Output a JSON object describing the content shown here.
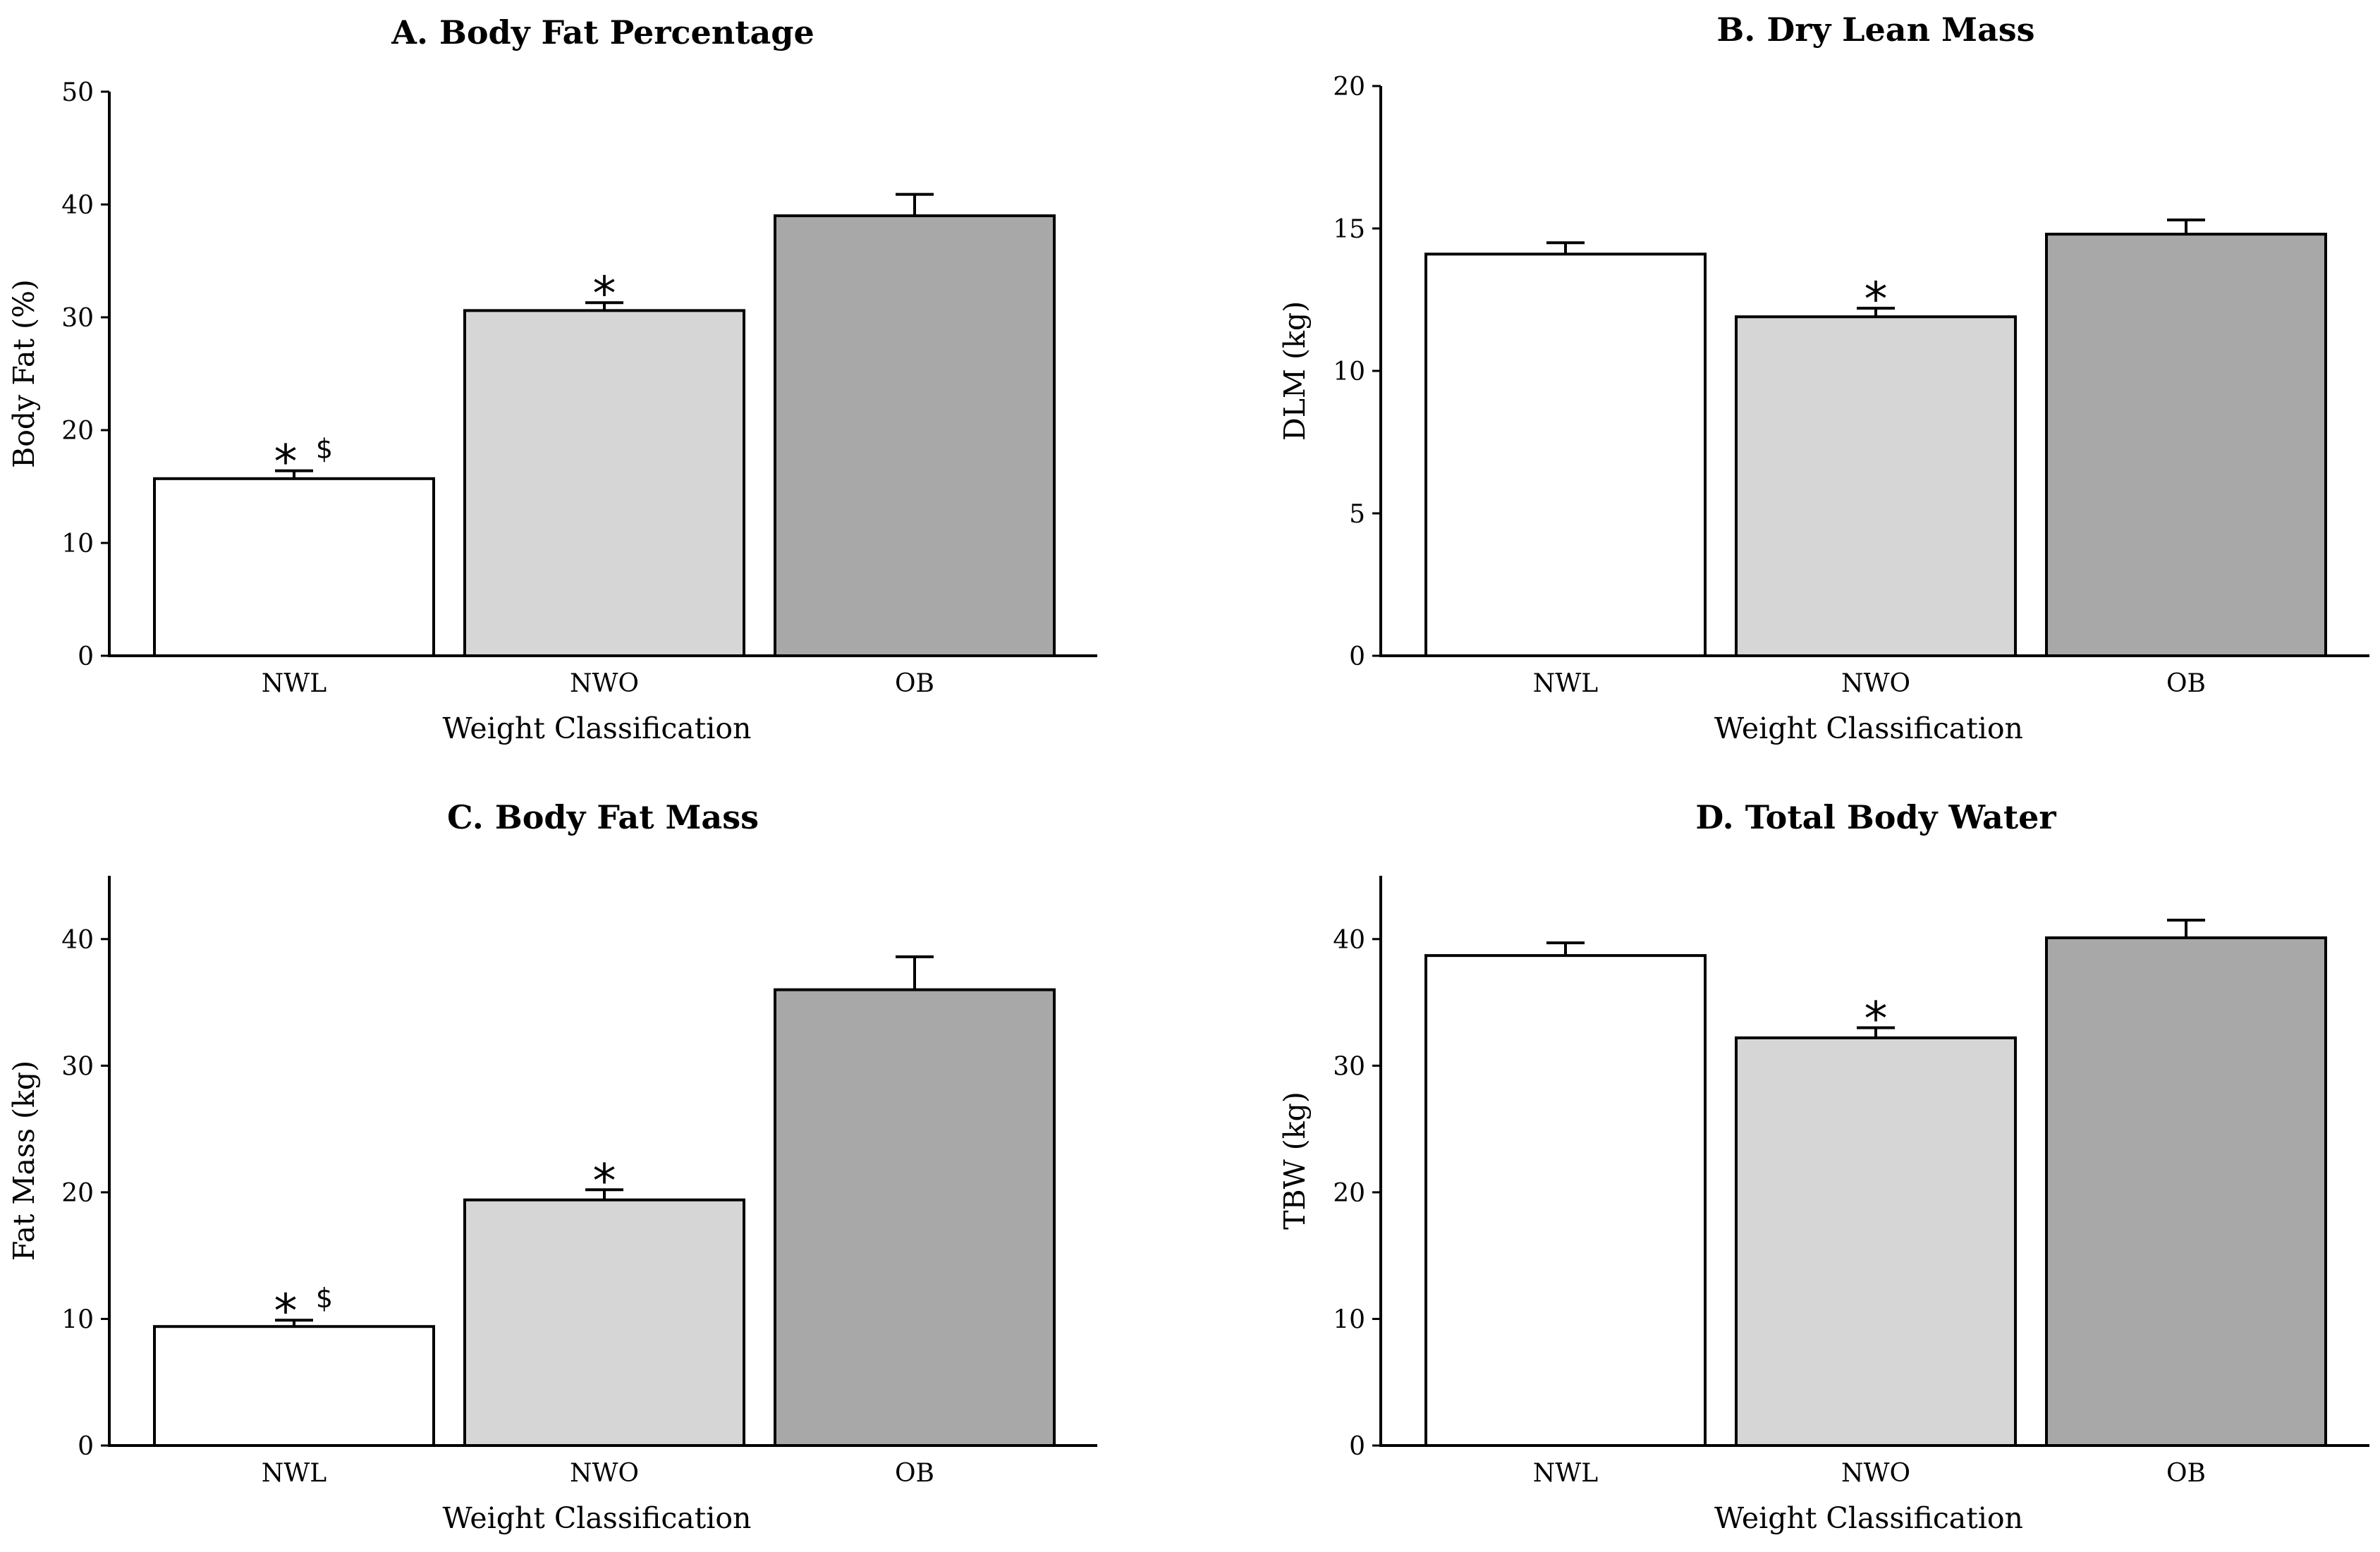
{
  "figure": {
    "colors": {
      "NWL": "#ffffff",
      "NWO": "#d6d6d6",
      "OB": "#a8a8a8",
      "stroke": "#000000"
    }
  },
  "chart_data": [
    {
      "type": "bar",
      "title": "A. Body Fat Percentage",
      "xlabel": "Weight Classification",
      "ylabel": "Body Fat (%)",
      "ylim": [
        0,
        50
      ],
      "yticks": [
        0,
        10,
        20,
        30,
        40,
        50
      ],
      "categories": [
        "NWL",
        "NWO",
        "OB"
      ],
      "values": [
        15.7,
        30.6,
        39.0
      ],
      "errors": [
        0.7,
        0.7,
        1.9
      ],
      "annotations": [
        {
          "category": "NWL",
          "star": "*",
          "dollar": "$"
        },
        {
          "category": "NWO",
          "star": "*",
          "dollar": ""
        }
      ]
    },
    {
      "type": "bar",
      "title": "B. Dry Lean Mass",
      "xlabel": "Weight Classification",
      "ylabel": "DLM (kg)",
      "ylim": [
        0,
        20
      ],
      "yticks": [
        0,
        5,
        10,
        15,
        20
      ],
      "categories": [
        "NWL",
        "NWO",
        "OB"
      ],
      "values": [
        14.1,
        11.9,
        14.8
      ],
      "errors": [
        0.4,
        0.3,
        0.5
      ],
      "annotations": [
        {
          "category": "NWO",
          "star": "*",
          "dollar": ""
        }
      ]
    },
    {
      "type": "bar",
      "title": "C. Body Fat Mass",
      "xlabel": "Weight Classification",
      "ylabel": "Fat Mass (kg)",
      "ylim": [
        0,
        45
      ],
      "yticks": [
        0,
        10,
        20,
        30,
        40
      ],
      "categories": [
        "NWL",
        "NWO",
        "OB"
      ],
      "values": [
        9.4,
        19.4,
        36.0
      ],
      "errors": [
        0.5,
        0.8,
        2.6
      ],
      "annotations": [
        {
          "category": "NWL",
          "star": "*",
          "dollar": "$"
        },
        {
          "category": "NWO",
          "star": "*",
          "dollar": ""
        }
      ]
    },
    {
      "type": "bar",
      "title": "D. Total Body Water",
      "xlabel": "Weight Classification",
      "ylabel": "TBW (kg)",
      "ylim": [
        0,
        45
      ],
      "yticks": [
        0,
        10,
        20,
        30,
        40
      ],
      "categories": [
        "NWL",
        "NWO",
        "OB"
      ],
      "values": [
        38.7,
        32.2,
        40.1
      ],
      "errors": [
        1.0,
        0.8,
        1.4
      ],
      "annotations": [
        {
          "category": "NWO",
          "star": "*",
          "dollar": ""
        }
      ]
    }
  ]
}
